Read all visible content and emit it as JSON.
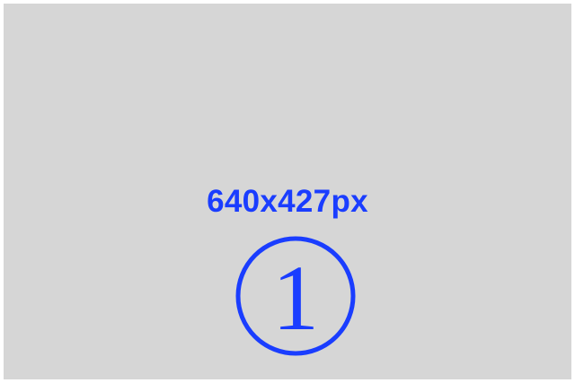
{
  "placeholder": {
    "dimensions_label": "640x427px",
    "badge_number": "1",
    "text_color": "#1a3dff",
    "background_color": "#d6d6d6",
    "badge_icon": "circled-number-icon"
  }
}
